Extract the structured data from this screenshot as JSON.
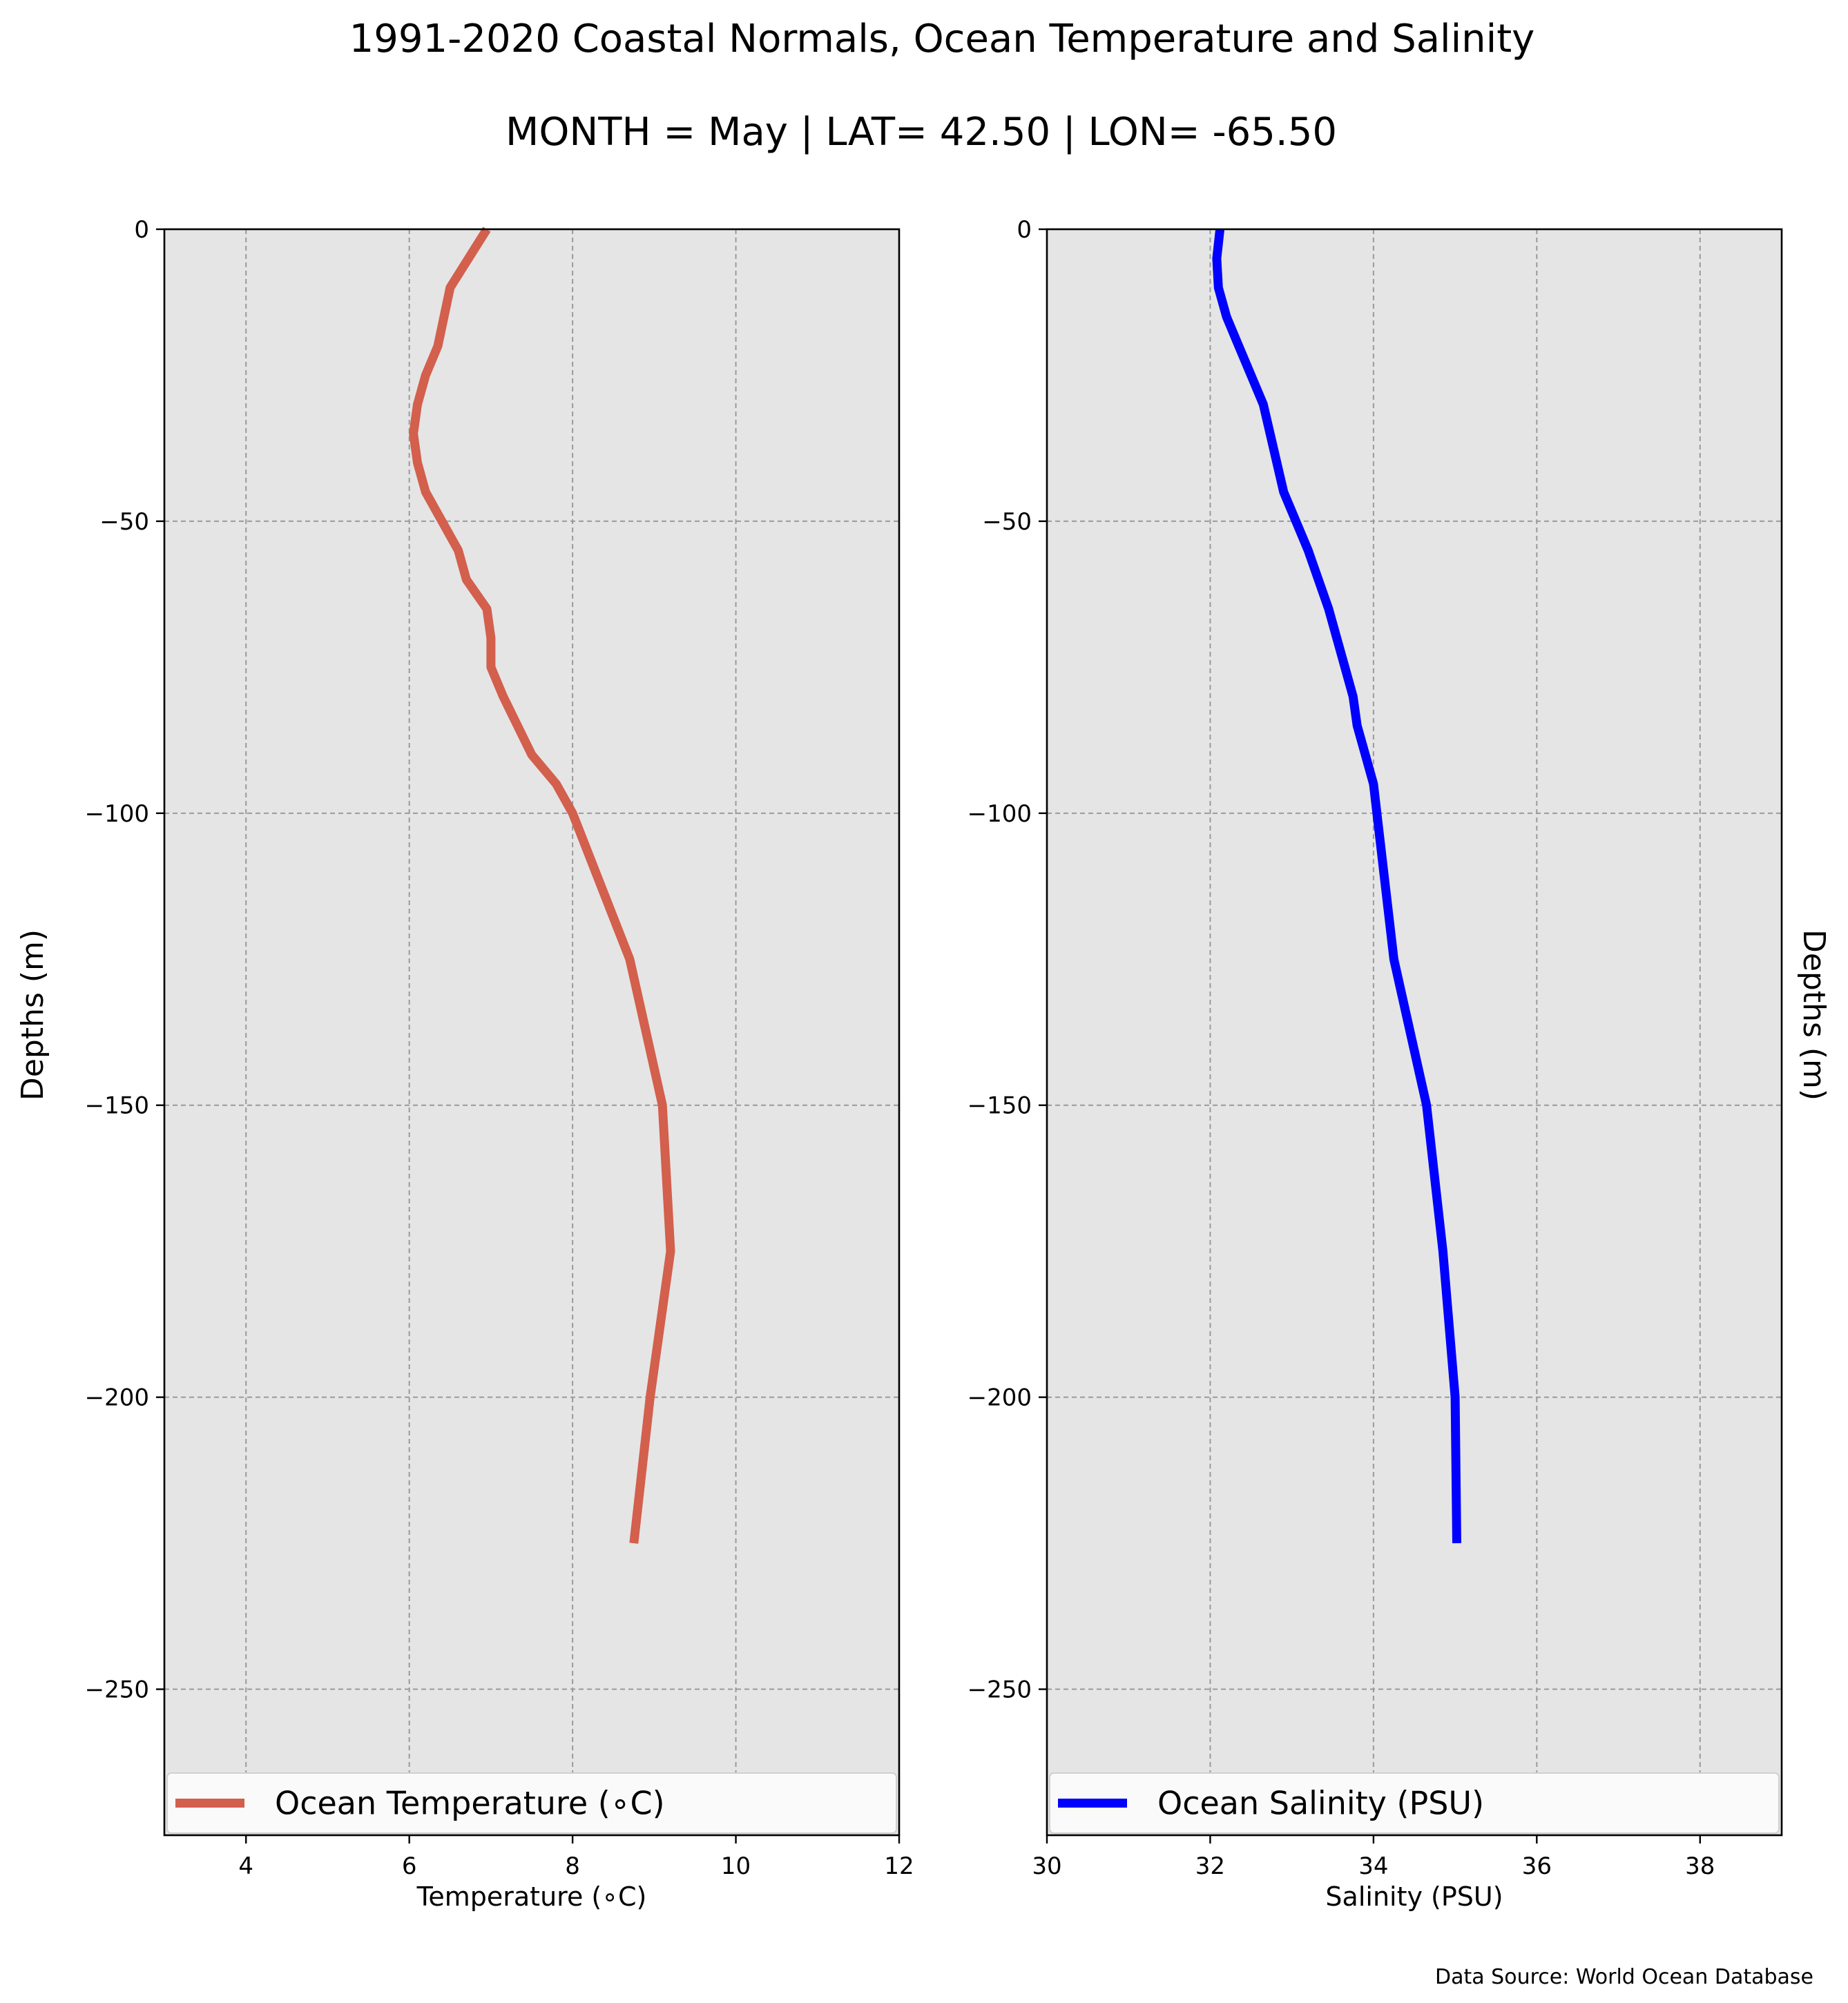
{
  "title": "1991-2020 Coastal Normals, Ocean Temperature and Salinity",
  "subtitle": "MONTH = May | LAT= 42.50 | LON= -65.50",
  "source": "Data Source: World Ocean Database",
  "chart_data": [
    {
      "type": "line",
      "xlabel": "Temperature (∘C)",
      "ylabel": "Depths (m)",
      "xlim": [
        3,
        12
      ],
      "ylim": [
        -275,
        0
      ],
      "xticks": [
        4,
        6,
        8,
        10,
        12
      ],
      "yticks": [
        0,
        -50,
        -100,
        -150,
        -200,
        -250
      ],
      "grid": true,
      "legend_position": "bottom",
      "series": [
        {
          "name": "Ocean Temperature (∘C)",
          "color": "#d35f4d",
          "x": [
            6.95,
            6.5,
            6.35,
            6.2,
            6.1,
            6.05,
            6.1,
            6.2,
            6.6,
            6.7,
            6.95,
            7.0,
            7.0,
            7.15,
            7.5,
            7.8,
            8.0,
            8.7,
            9.1,
            9.2,
            8.95,
            8.75
          ],
          "y": [
            0,
            -10,
            -20,
            -25,
            -30,
            -35,
            -40,
            -45,
            -55,
            -60,
            -65,
            -70,
            -75,
            -80,
            -90,
            -95,
            -100,
            -125,
            -150,
            -175,
            -200,
            -225
          ]
        }
      ]
    },
    {
      "type": "line",
      "xlabel": "Salinity (PSU)",
      "ylabel": "Depths (m)",
      "xlim": [
        30,
        39
      ],
      "ylim": [
        -275,
        0
      ],
      "xticks": [
        30,
        32,
        34,
        36,
        38
      ],
      "yticks": [
        0,
        -50,
        -100,
        -150,
        -200,
        -250
      ],
      "grid": true,
      "legend_position": "bottom",
      "series": [
        {
          "name": "Ocean Salinity (PSU)",
          "color": "#0000ff",
          "x": [
            32.12,
            32.08,
            32.1,
            32.2,
            32.35,
            32.5,
            32.65,
            32.9,
            33.2,
            33.45,
            33.55,
            33.65,
            33.75,
            33.8,
            33.9,
            34.0,
            34.25,
            34.65,
            34.85,
            35.0,
            35.02
          ],
          "y": [
            0,
            -5,
            -10,
            -15,
            -20,
            -25,
            -30,
            -45,
            -55,
            -65,
            -70,
            -75,
            -80,
            -85,
            -90,
            -95,
            -125,
            -150,
            -175,
            -200,
            -225
          ]
        }
      ]
    }
  ]
}
